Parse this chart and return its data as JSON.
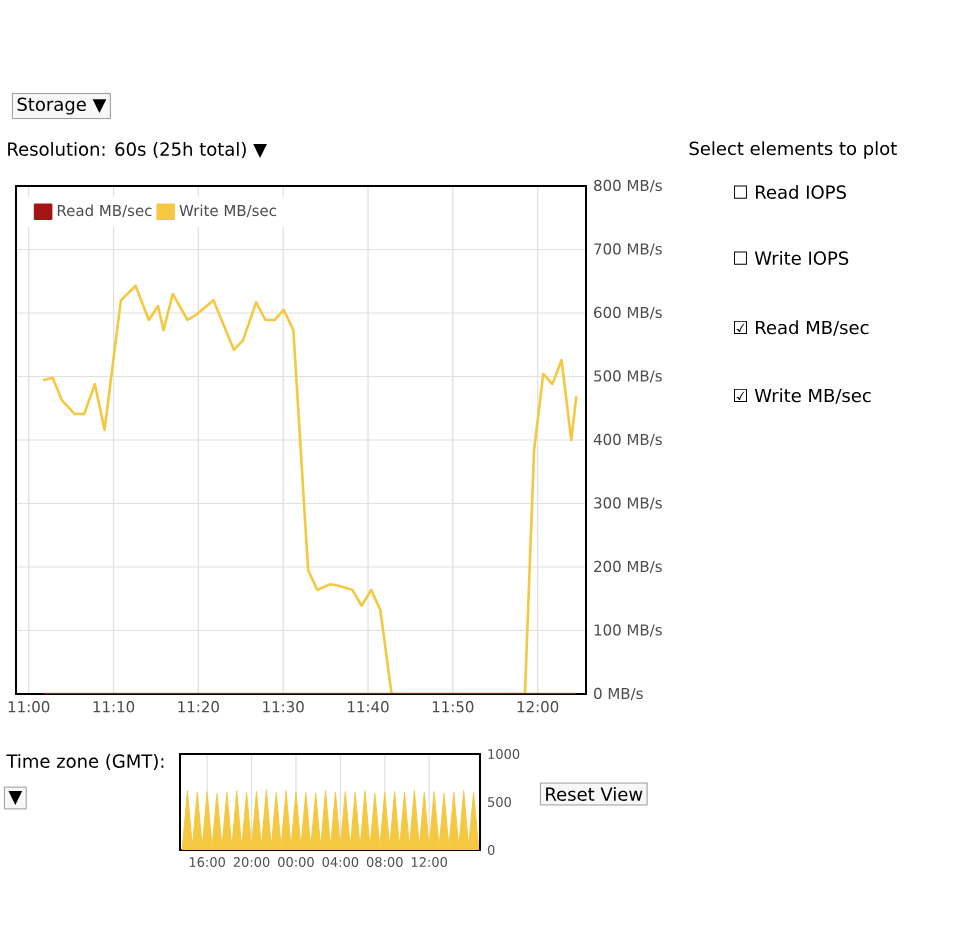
{
  "chart_data": [
    {
      "type": "line",
      "xlim": [
        10.975,
        12.095
      ],
      "ylim": [
        0,
        800
      ],
      "xticks": [
        {
          "value": 11.0,
          "label": "11:00"
        },
        {
          "value": 11.1667,
          "label": "11:10"
        },
        {
          "value": 11.3333,
          "label": "11:20"
        },
        {
          "value": 11.5,
          "label": "11:30"
        },
        {
          "value": 11.6667,
          "label": "11:40"
        },
        {
          "value": 11.8333,
          "label": "11:50"
        },
        {
          "value": 12.0,
          "label": "12:00"
        }
      ],
      "yticks": [
        {
          "value": 0,
          "label": "0 MB/s"
        },
        {
          "value": 100,
          "label": "100 MB/s"
        },
        {
          "value": 200,
          "label": "200 MB/s"
        },
        {
          "value": 300,
          "label": "300 MB/s"
        },
        {
          "value": 400,
          "label": "400 MB/s"
        },
        {
          "value": 500,
          "label": "500 MB/s"
        },
        {
          "value": 600,
          "label": "600 MB/s"
        },
        {
          "value": 700,
          "label": "700 MB/s"
        },
        {
          "value": 800,
          "label": "800 MB/s"
        }
      ],
      "series": [
        {
          "name": "Write MB/sec",
          "color": "#f5c842",
          "x": [
            11.028,
            11.047,
            11.065,
            11.09,
            11.109,
            11.13,
            11.149,
            11.181,
            11.21,
            11.236,
            11.254,
            11.265,
            11.283,
            11.312,
            11.33,
            11.363,
            11.403,
            11.421,
            11.447,
            11.465,
            11.483,
            11.501,
            11.52,
            11.549,
            11.567,
            11.593,
            11.611,
            11.636,
            11.654,
            11.673,
            11.691,
            11.713,
            11.975,
            11.993,
            12.011,
            12.029,
            12.047,
            12.066,
            12.076
          ],
          "values": [
            494,
            498,
            463,
            441,
            441,
            488,
            416,
            620,
            643,
            589,
            611,
            573,
            630,
            589,
            598,
            620,
            542,
            557,
            617,
            589,
            589,
            605,
            573,
            195,
            164,
            173,
            170,
            164,
            139,
            164,
            132,
            0,
            0,
            384,
            504,
            488,
            526,
            400,
            469
          ]
        },
        {
          "name": "Read MB/sec",
          "color": "#a31515",
          "x": [
            11.028,
            11.3,
            11.6,
            11.9,
            12.076
          ],
          "values": [
            0,
            0,
            0,
            0,
            0
          ]
        }
      ],
      "grid": true,
      "legend": "top left",
      "marker": "none",
      "annotations": [
        "Storage ▼",
        "Resolution: 60s (25h total) ▼",
        "Select elements to plot",
        "☐ Read IOPS",
        "☐ Write IOPS",
        "☑ Read MB/sec",
        "☑ Write MB/sec",
        "Time zone (GMT):",
        "▼"
      ]
    },
    {
      "type": "area",
      "ylim": [
        0,
        1000
      ],
      "yticks": [
        0,
        500,
        1000
      ],
      "categories": [
        null,
        null,
        null,
        null,
        null,
        "16:00",
        null,
        null,
        null,
        null,
        null,
        null,
        null,
        null,
        "20:00",
        null,
        null,
        null,
        null,
        null,
        null,
        null,
        null,
        "00:00",
        null,
        null,
        null,
        null,
        null,
        null,
        null,
        null,
        "04:00",
        null,
        null,
        null,
        null,
        null,
        null,
        null,
        null,
        "08:00",
        null,
        null,
        null,
        null,
        null,
        null,
        null,
        null,
        "12:00",
        null,
        null,
        null,
        null,
        null,
        null,
        null,
        null,
        null,
        null
      ],
      "series": [
        {
          "color": "#f5c842",
          "values": [
            30,
            620,
            30,
            600,
            30,
            610,
            30,
            590,
            30,
            600,
            30,
            620,
            30,
            600,
            30,
            610,
            30,
            630,
            30,
            600,
            30,
            620,
            30,
            610,
            30,
            600,
            30,
            590,
            30,
            620,
            30,
            600,
            30,
            610,
            30,
            600,
            30,
            620,
            30,
            590,
            30,
            600,
            30,
            610,
            30,
            600,
            30,
            620,
            30,
            600,
            30,
            610,
            30,
            590,
            30,
            600,
            30,
            620,
            30,
            600,
            30
          ]
        }
      ],
      "grid": "x",
      "marker": "none",
      "annotations": [
        "Reset View"
      ]
    }
  ]
}
